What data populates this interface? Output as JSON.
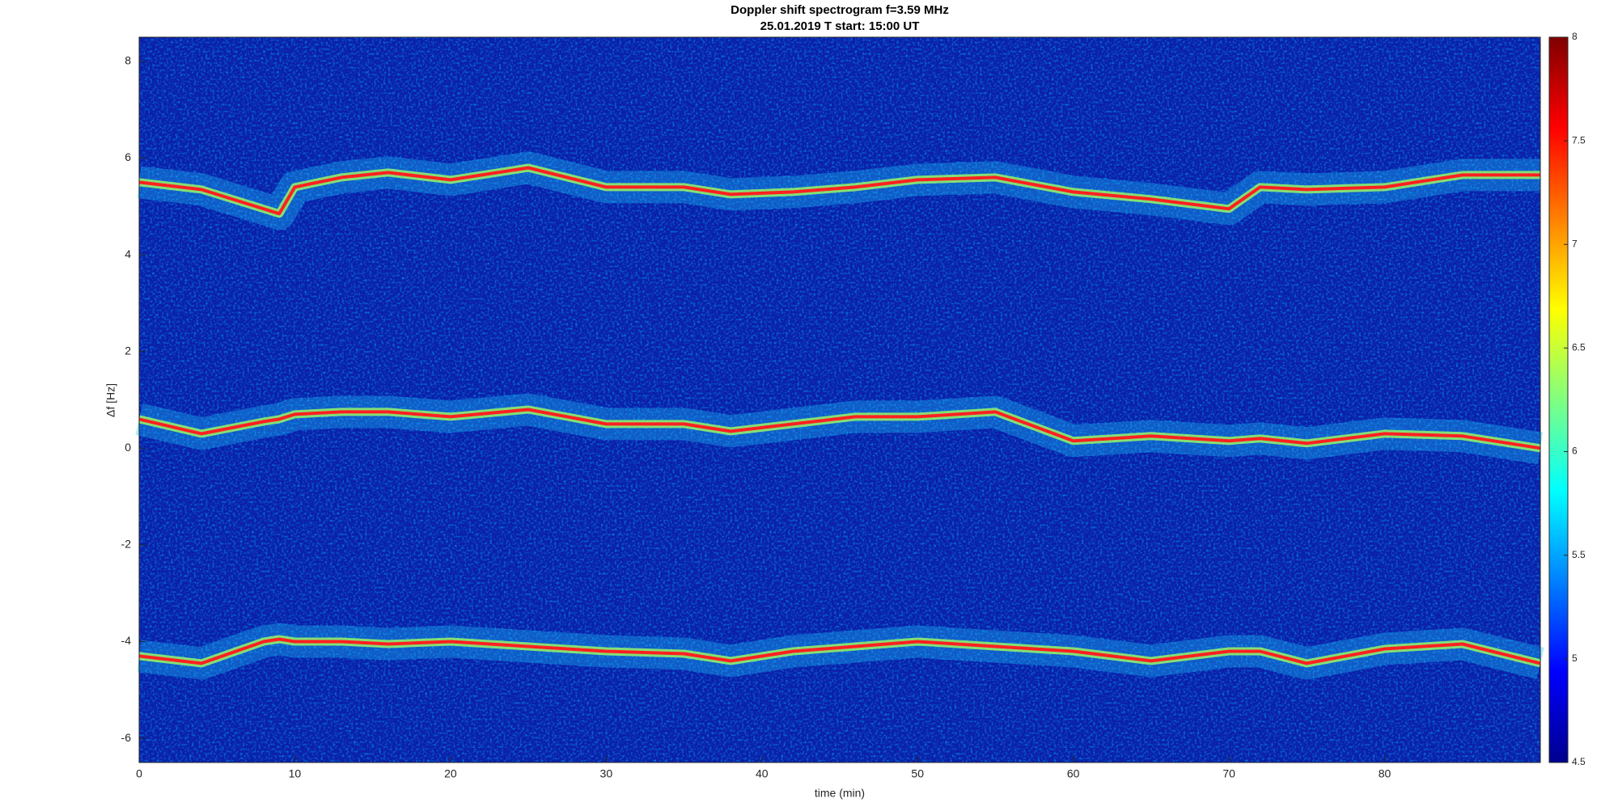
{
  "chart_data": {
    "type": "spectrogram",
    "title": "Doppler shift spectrogram f=3.59 MHz",
    "subtitle": "25.01.2019   T start: 15:00 UT",
    "x_label": "time (min)",
    "y_label": "Δf [Hz]",
    "xlim": [
      0,
      90
    ],
    "xticks": [
      0,
      10,
      20,
      30,
      40,
      50,
      60,
      70,
      80
    ],
    "ylim": [
      -6.5,
      8.5
    ],
    "yticks": [
      -6,
      -4,
      -2,
      0,
      2,
      4,
      6,
      8
    ],
    "background": "#0b1fa8",
    "x": [
      0,
      4,
      8,
      9,
      10,
      13,
      16,
      20,
      25,
      30,
      35,
      38,
      42,
      46,
      50,
      55,
      60,
      65,
      70,
      72,
      75,
      80,
      85,
      90
    ],
    "series": [
      {
        "color": "#ff2020",
        "values": [
          5.5,
          5.35,
          4.95,
          4.85,
          5.4,
          5.6,
          5.7,
          5.55,
          5.8,
          5.4,
          5.4,
          5.25,
          5.3,
          5.4,
          5.55,
          5.6,
          5.3,
          5.15,
          4.95,
          5.4,
          5.35,
          5.4,
          5.65,
          5.65
        ]
      },
      {
        "color": "#ff2020",
        "values": [
          0.6,
          0.3,
          0.55,
          0.6,
          0.7,
          0.75,
          0.75,
          0.65,
          0.8,
          0.5,
          0.5,
          0.35,
          0.5,
          0.65,
          0.65,
          0.75,
          0.15,
          0.25,
          0.15,
          0.2,
          0.1,
          0.3,
          0.25,
          0
        ]
      },
      {
        "color": "#ff2020",
        "values": [
          -4.3,
          -4.45,
          -4.0,
          -3.95,
          -4.0,
          -4.0,
          -4.05,
          -4.0,
          -4.1,
          -4.2,
          -4.25,
          -4.4,
          -4.2,
          -4.1,
          -4.0,
          -4.1,
          -4.2,
          -4.4,
          -4.2,
          -4.2,
          -4.45,
          -4.15,
          -4.05,
          -4.45
        ]
      }
    ],
    "colorbar": {
      "lim": [
        4.5,
        8
      ],
      "ticks": [
        4.5,
        5,
        5.5,
        6,
        6.5,
        7,
        7.5,
        8
      ],
      "colors": [
        "#00008f",
        "#0000ff",
        "#0080ff",
        "#00ffff",
        "#80ff80",
        "#ffff00",
        "#ff8000",
        "#ff0000",
        "#800000"
      ]
    }
  }
}
